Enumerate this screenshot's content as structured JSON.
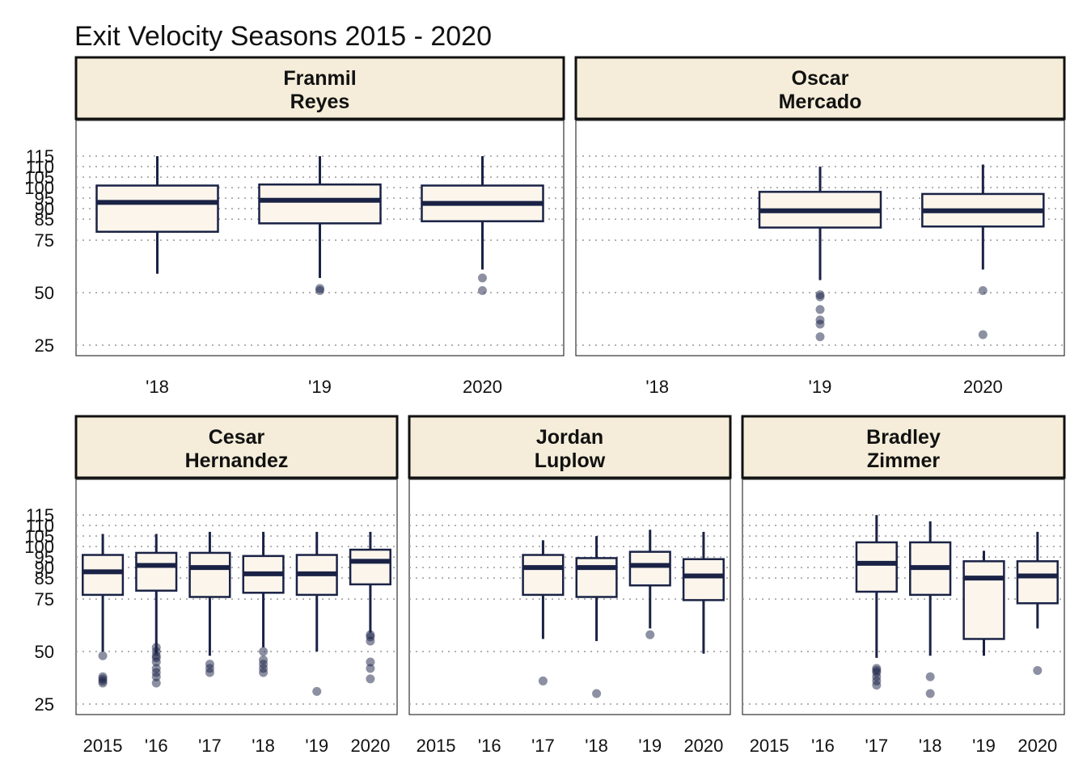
{
  "chart_data": {
    "type": "box",
    "title": "Exit Velocity Seasons 2015 - 2020",
    "y_ticks": [
      25,
      50,
      75,
      85,
      90,
      95,
      100,
      105,
      110,
      115
    ],
    "y_range": [
      20,
      132
    ],
    "grid": "horizontal dotted",
    "colors": {
      "box_fill": "#fbf5ec",
      "box_stroke": "#1a2245",
      "strip_fill": "#f5edd9",
      "outlier": "#1a2245",
      "grid": "#999999"
    },
    "panels": [
      {
        "name_lines": [
          "Franmil",
          "Reyes"
        ],
        "categories": [
          "'18",
          "'19",
          "2020"
        ],
        "boxes": [
          {
            "category": "'18",
            "low": 59,
            "q1": 79,
            "median": 93,
            "q3": 101,
            "high": 115,
            "outliers": []
          },
          {
            "category": "'19",
            "low": 57,
            "q1": 83,
            "median": 94,
            "q3": 101.5,
            "high": 115,
            "outliers": [
              51,
              52
            ]
          },
          {
            "category": "2020",
            "low": 61,
            "q1": 84,
            "median": 92.5,
            "q3": 101,
            "high": 115,
            "outliers": [
              51,
              57
            ]
          }
        ]
      },
      {
        "name_lines": [
          "Oscar",
          "Mercado"
        ],
        "categories": [
          "'18",
          "'19",
          "2020"
        ],
        "boxes": [
          {
            "category": "'19",
            "low": 56,
            "q1": 81,
            "median": 89,
            "q3": 98,
            "high": 110,
            "outliers": [
              29,
              35,
              37,
              42,
              48,
              49
            ]
          },
          {
            "category": "2020",
            "low": 61,
            "q1": 81.5,
            "median": 89,
            "q3": 97,
            "high": 111,
            "outliers": [
              30,
              51
            ]
          }
        ]
      },
      {
        "name_lines": [
          "Cesar",
          "Hernandez"
        ],
        "categories": [
          "2015",
          "'16",
          "'17",
          "'18",
          "'19",
          "2020"
        ],
        "boxes": [
          {
            "category": "2015",
            "low": 50,
            "q1": 77,
            "median": 88,
            "q3": 96,
            "high": 106,
            "outliers": [
              35,
              36,
              37,
              38,
              48
            ]
          },
          {
            "category": "'16",
            "low": 49,
            "q1": 79,
            "median": 91,
            "q3": 97,
            "high": 106,
            "outliers": [
              35,
              38,
              40,
              42,
              45,
              47,
              48,
              50,
              52
            ]
          },
          {
            "category": "'17",
            "low": 48,
            "q1": 76,
            "median": 90,
            "q3": 97,
            "high": 107,
            "outliers": [
              40,
              42,
              44
            ]
          },
          {
            "category": "'18",
            "low": 52,
            "q1": 78,
            "median": 87,
            "q3": 95.5,
            "high": 107,
            "outliers": [
              40,
              42,
              44,
              46,
              50
            ]
          },
          {
            "category": "'19",
            "low": 50,
            "q1": 77,
            "median": 87,
            "q3": 96,
            "high": 107,
            "outliers": [
              31
            ]
          },
          {
            "category": "2020",
            "low": 59,
            "q1": 82,
            "median": 93,
            "q3": 98.5,
            "high": 107,
            "outliers": [
              37,
              42,
              45,
              55,
              57,
              58
            ]
          }
        ]
      },
      {
        "name_lines": [
          "Jordan",
          "Luplow"
        ],
        "categories": [
          "2015",
          "'16",
          "'17",
          "'18",
          "'19",
          "2020"
        ],
        "boxes": [
          {
            "category": "'17",
            "low": 56,
            "q1": 77,
            "median": 90,
            "q3": 96,
            "high": 103,
            "outliers": [
              36
            ]
          },
          {
            "category": "'18",
            "low": 55,
            "q1": 76,
            "median": 90,
            "q3": 94.5,
            "high": 105,
            "outliers": [
              30
            ]
          },
          {
            "category": "'19",
            "low": 61,
            "q1": 81.5,
            "median": 91,
            "q3": 97.5,
            "high": 108,
            "outliers": [
              58
            ]
          },
          {
            "category": "2020",
            "low": 49,
            "q1": 74.5,
            "median": 86,
            "q3": 94,
            "high": 107,
            "outliers": []
          }
        ]
      },
      {
        "name_lines": [
          "Bradley",
          "Zimmer"
        ],
        "categories": [
          "2015",
          "'16",
          "'17",
          "'18",
          "'19",
          "2020"
        ],
        "boxes": [
          {
            "category": "'17",
            "low": 47,
            "q1": 78.5,
            "median": 92,
            "q3": 102,
            "high": 115,
            "outliers": [
              34,
              36,
              38,
              40,
              41,
              42
            ]
          },
          {
            "category": "'18",
            "low": 48,
            "q1": 77,
            "median": 90,
            "q3": 102,
            "high": 112,
            "outliers": [
              30,
              38
            ]
          },
          {
            "category": "'19",
            "low": 48,
            "q1": 56,
            "median": 85,
            "q3": 93,
            "high": 98,
            "outliers": []
          },
          {
            "category": "2020",
            "low": 61,
            "q1": 73,
            "median": 86,
            "q3": 93,
            "high": 107,
            "outliers": [
              41
            ]
          }
        ]
      }
    ]
  }
}
